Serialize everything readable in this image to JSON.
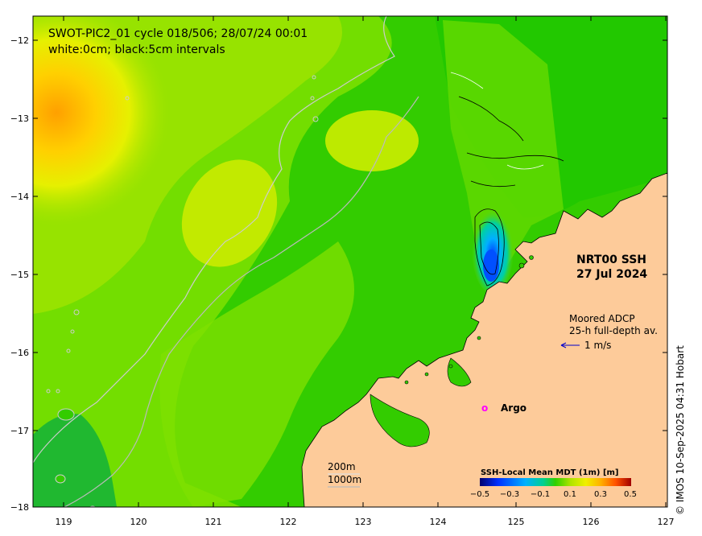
{
  "title_line1": "SWOT-PIC2_01 cycle 018/506; 28/07/24 00:01",
  "title_line2": "white:0cm; black:5cm intervals",
  "product": "NRT00 SSH",
  "product_date": "27 Jul 2024",
  "adcp_line1": "Moored ADCP",
  "adcp_line2": "25-h full-depth av.",
  "adcp_speed": "1 m/s",
  "argo_marker": "o",
  "argo_label": "Argo",
  "depth_200": "200m",
  "depth_1000": "1000m",
  "credit": "© IMOS 10-Sep-2025 04:31 Hobart",
  "colorbar": {
    "title": "SSH-Local Mean MDT (1m) [m]",
    "ticks": [
      "−0.5",
      "−0.3",
      "−0.1",
      "0.1",
      "0.3",
      "0.5"
    ],
    "colors": [
      "#00006e",
      "#0040ff",
      "#00c0ff",
      "#00d090",
      "#30d000",
      "#a0e000",
      "#f0f000",
      "#ffb000",
      "#ff5000",
      "#a00000"
    ]
  },
  "axes": {
    "lon_ticks": [
      "119",
      "120",
      "121",
      "122",
      "123",
      "124",
      "125",
      "126",
      "127"
    ],
    "lat_ticks": [
      "−12",
      "−13",
      "−14",
      "−15",
      "−16",
      "−17",
      "−18"
    ]
  },
  "colors": {
    "land": "#fdcb9a",
    "sea_base": "#33cc00",
    "argo": "#ff00ff",
    "arrow": "#0000cc"
  }
}
